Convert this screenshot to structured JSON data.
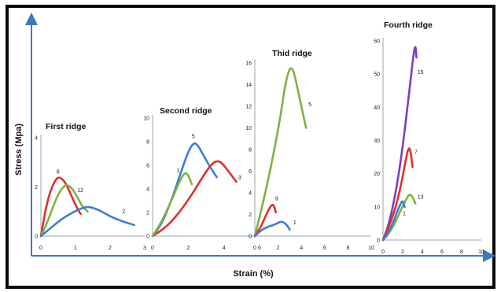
{
  "figure": {
    "ylabel": "Stress  (Mpa)",
    "xlabel": "Strain  (%)",
    "colors": {
      "frame": "#0a0a0a",
      "axis": "#3a78c9",
      "blue": "#3a7fd5",
      "red": "#e0302a",
      "green": "#7cb342",
      "purple": "#7b3fbf"
    }
  },
  "chart_data": [
    {
      "type": "line",
      "title": "First ridge",
      "xlim": [
        0,
        3
      ],
      "ylim": [
        0,
        4
      ],
      "xticks": [
        "0",
        "1",
        "2",
        "3"
      ],
      "yticks": [
        "0",
        "2",
        "4"
      ],
      "series": [
        {
          "name": "8",
          "color": "#e0302a",
          "x": [
            0,
            0.15,
            0.3,
            0.45,
            0.55,
            0.7,
            0.85,
            1.0,
            1.15
          ],
          "y": [
            0,
            1.2,
            1.95,
            2.35,
            2.4,
            2.2,
            1.75,
            1.25,
            0.9
          ]
        },
        {
          "name": "12",
          "color": "#7cb342",
          "x": [
            0,
            0.2,
            0.4,
            0.6,
            0.75,
            0.9,
            1.05,
            1.2,
            1.35
          ],
          "y": [
            0,
            0.6,
            1.4,
            1.95,
            2.1,
            1.95,
            1.6,
            1.2,
            1.0
          ]
        },
        {
          "name": "2",
          "color": "#3a7fd5",
          "x": [
            0,
            0.3,
            0.6,
            0.9,
            1.2,
            1.4,
            1.7,
            2.0,
            2.35,
            2.7
          ],
          "y": [
            0,
            0.35,
            0.7,
            0.95,
            1.15,
            1.2,
            1.05,
            0.8,
            0.6,
            0.45
          ]
        }
      ],
      "labels": [
        {
          "text": "8",
          "x": 0.45,
          "y": 2.55
        },
        {
          "text": "12",
          "x": 1.05,
          "y": 1.8
        },
        {
          "text": "2",
          "x": 2.35,
          "y": 0.95
        }
      ]
    },
    {
      "type": "line",
      "title": "Second ridge",
      "xlim": [
        0,
        6
      ],
      "ylim": [
        0,
        10
      ],
      "xticks": [
        "0",
        "2",
        "4",
        "6"
      ],
      "yticks": [
        "0",
        "2",
        "4",
        "6",
        "8",
        "10"
      ],
      "series": [
        {
          "name": "5",
          "color": "#3a7fd5",
          "x": [
            0,
            0.5,
            1.0,
            1.5,
            2.0,
            2.3,
            2.5,
            2.8,
            3.2,
            3.6
          ],
          "y": [
            0,
            1.0,
            2.8,
            5.0,
            7.2,
            7.9,
            7.8,
            7.0,
            5.9,
            5.0
          ]
        },
        {
          "name": "3",
          "color": "#e0302a",
          "x": [
            0,
            0.8,
            1.5,
            2.2,
            2.8,
            3.3,
            3.6,
            3.9,
            4.3,
            4.7
          ],
          "y": [
            0,
            0.8,
            2.0,
            3.5,
            5.0,
            6.1,
            6.4,
            6.2,
            5.4,
            4.6
          ]
        },
        {
          "name": "",
          "color": "#7cb342",
          "x": [
            0,
            0.5,
            1.0,
            1.5,
            1.8,
            2.0,
            2.2
          ],
          "y": [
            0,
            1.2,
            2.8,
            4.6,
            5.4,
            5.2,
            4.4
          ]
        }
      ],
      "labels": [
        {
          "text": "5",
          "x": 2.2,
          "y": 8.3
        },
        {
          "text": "3",
          "x": 4.8,
          "y": 4.8
        },
        {
          "text": "1",
          "x": 1.35,
          "y": 5.4
        }
      ]
    },
    {
      "type": "line",
      "title": "Thid ridge",
      "xlim": [
        0,
        10
      ],
      "ylim": [
        0,
        16
      ],
      "xticks": [
        "0",
        "2",
        "4",
        "6",
        "8",
        "10"
      ],
      "yticks": [
        "0",
        "2",
        "4",
        "6",
        "8",
        "10",
        "12",
        "14",
        "16"
      ],
      "series": [
        {
          "name": "5",
          "color": "#7cb342",
          "x": [
            0,
            0.8,
            1.5,
            2.2,
            2.6,
            3.0,
            3.3,
            3.6,
            4.0,
            4.4
          ],
          "y": [
            0,
            3.5,
            7.0,
            11.0,
            14.0,
            15.6,
            15.4,
            14.0,
            12.0,
            10.0
          ]
        },
        {
          "name": "9",
          "color": "#e0302a",
          "x": [
            0,
            0.5,
            0.9,
            1.3,
            1.6,
            1.8
          ],
          "y": [
            0,
            0.8,
            1.8,
            2.7,
            3.0,
            2.2
          ]
        },
        {
          "name": "1",
          "color": "#3a7fd5",
          "x": [
            0,
            0.6,
            1.2,
            1.8,
            2.3,
            2.7,
            3.0
          ],
          "y": [
            0,
            0.6,
            0.9,
            1.1,
            1.4,
            1.1,
            0.6
          ]
        }
      ],
      "labels": [
        {
          "text": "5",
          "x": 4.6,
          "y": 12.0
        },
        {
          "text": "9",
          "x": 1.75,
          "y": 3.3
        },
        {
          "text": "1",
          "x": 3.3,
          "y": 1.1
        }
      ]
    },
    {
      "type": "line",
      "title": "Fourth ridge",
      "xlim": [
        0,
        10
      ],
      "ylim": [
        0,
        60
      ],
      "xticks": [
        "0",
        "2",
        "4",
        "6",
        "8",
        "10"
      ],
      "yticks": [
        "0",
        "10",
        "20",
        "30",
        "40",
        "50",
        "60"
      ],
      "series": [
        {
          "name": "15",
          "color": "#7b3fbf",
          "x": [
            0,
            0.5,
            1.0,
            1.5,
            2.0,
            2.4,
            2.8,
            3.1,
            3.3,
            3.4
          ],
          "y": [
            0,
            4,
            10,
            18,
            28,
            38,
            48,
            56,
            59,
            55
          ]
        },
        {
          "name": "7",
          "color": "#e0302a",
          "x": [
            0,
            0.6,
            1.2,
            1.8,
            2.3,
            2.6,
            2.8,
            3.0
          ],
          "y": [
            0,
            4,
            9,
            16,
            24,
            28,
            27,
            22
          ]
        },
        {
          "name": "13",
          "color": "#7cb342",
          "x": [
            0,
            0.6,
            1.2,
            1.8,
            2.3,
            2.7,
            3.0,
            3.3
          ],
          "y": [
            0,
            2,
            5,
            9,
            12,
            14,
            13,
            11
          ]
        },
        {
          "name": "",
          "color": "#3a7fd5",
          "x": [
            0,
            0.5,
            1.0,
            1.5,
            1.8,
            2.0,
            2.2
          ],
          "y": [
            0,
            2,
            5,
            9,
            11,
            12,
            10
          ]
        }
      ],
      "labels": [
        {
          "text": "15",
          "x": 3.5,
          "y": 50
        },
        {
          "text": "7",
          "x": 3.2,
          "y": 26
        },
        {
          "text": "13",
          "x": 3.5,
          "y": 12.5
        },
        {
          "text": "1",
          "x": 2.0,
          "y": 7.5
        }
      ]
    }
  ]
}
